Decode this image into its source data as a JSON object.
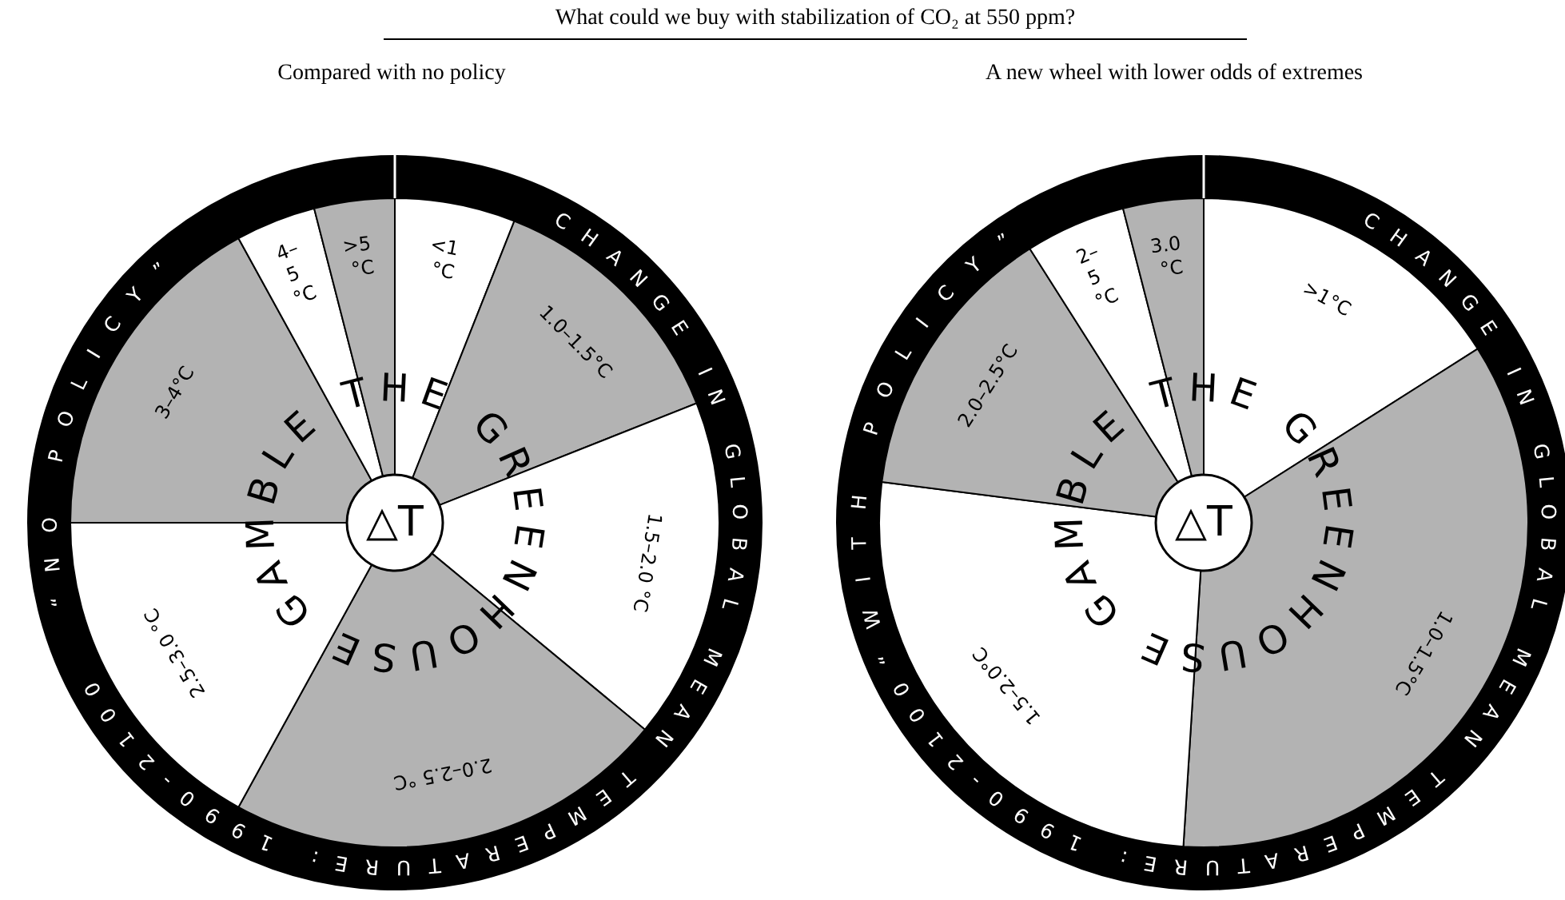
{
  "chart_data": [
    {
      "type": "pie",
      "title": "What could we buy with stabilization of CO₂ at 550 ppm?",
      "subtitle": "Compared with no policy",
      "categories": [
        "<1 °C",
        "1.0–1.5°C",
        "1.5–2.0 °C",
        "2.0–2.5 °C",
        "2.5–3.0 °C",
        "3–4°C",
        "4–5 °C",
        ">5 °C"
      ],
      "values": [
        6,
        13,
        17,
        22,
        17,
        17,
        4,
        4
      ],
      "colors": [
        "#ffffff",
        "#b3b3b3",
        "#ffffff",
        "#b3b3b3",
        "#ffffff",
        "#b3b3b3",
        "#ffffff",
        "#b3b3b3"
      ],
      "annotations": [
        "CHANGE IN GLOBAL MEAN TEMPERATURE: 1990-2100",
        "“NO POLICY”",
        "THE GREENHOUSE GAMBLE",
        "△T"
      ]
    },
    {
      "type": "pie",
      "subtitle": "A new wheel with lower odds of extremes",
      "categories": [
        ">1°C",
        "1.0–1.5°C",
        "1.5–2.0°C",
        "2.0–2.5°C",
        "2–5 °C",
        "3.0 °C"
      ],
      "values": [
        16,
        35,
        26,
        14,
        5,
        4
      ],
      "colors": [
        "#ffffff",
        "#b3b3b3",
        "#ffffff",
        "#b3b3b3",
        "#ffffff",
        "#b3b3b3"
      ],
      "annotations": [
        "CHANGE IN GLOBAL MEAN TEMPERATURE: 1990-2100",
        "“WITH POLICY”",
        "THE GREENHOUSE GAMBLE",
        "△T"
      ]
    }
  ]
}
